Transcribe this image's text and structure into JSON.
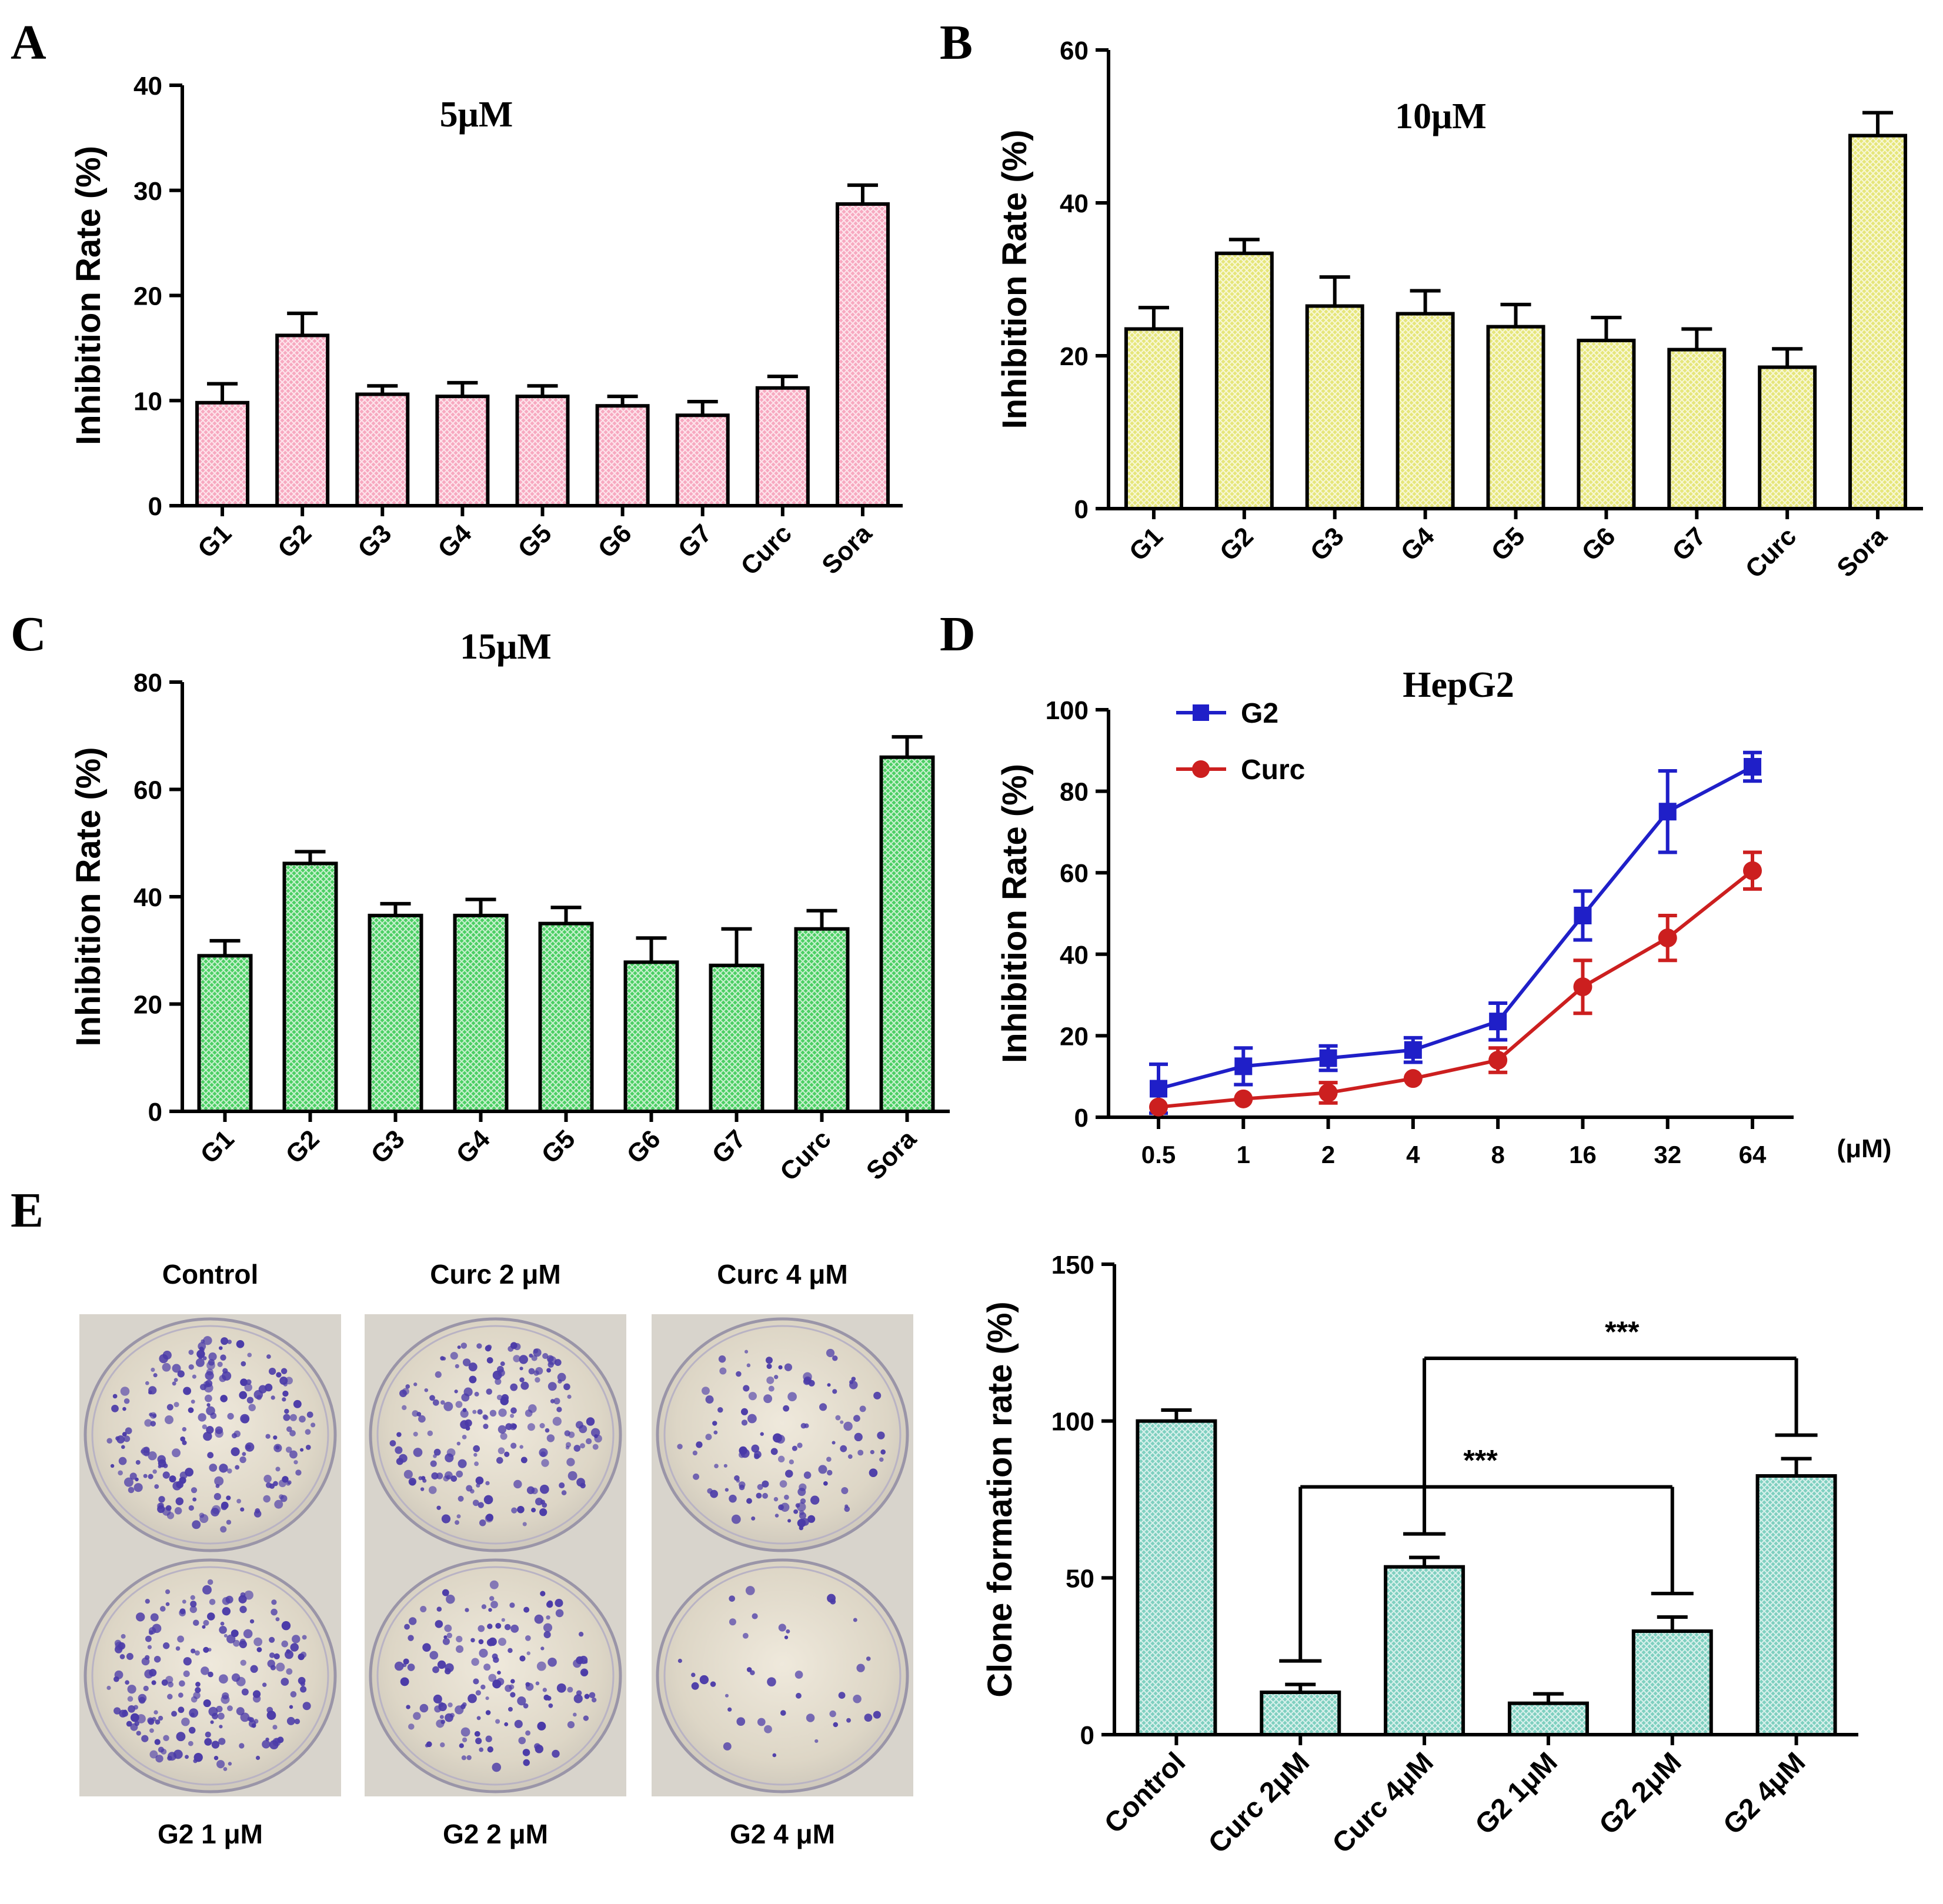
{
  "panels": [
    "A",
    "B",
    "C",
    "D",
    "E"
  ],
  "chart_data": [
    {
      "id": "A",
      "type": "bar",
      "title": "5μM",
      "ylabel": "Inhibition Rate (%)",
      "xlabel": "",
      "categories": [
        "G1",
        "G2",
        "G3",
        "G4",
        "G5",
        "G6",
        "G7",
        "Curc",
        "Sora"
      ],
      "values": [
        9.8,
        16.2,
        10.6,
        10.4,
        10.4,
        9.5,
        8.6,
        11.2,
        28.7
      ],
      "errors": [
        1.8,
        2.1,
        0.8,
        1.3,
        1.0,
        0.9,
        1.3,
        1.1,
        1.8
      ],
      "yticks": [
        0,
        10,
        20,
        30,
        40
      ],
      "ylim": [
        0,
        40
      ],
      "color": "#f7a9c0"
    },
    {
      "id": "B",
      "type": "bar",
      "title": "10μM",
      "ylabel": "Inhibition Rate (%)",
      "xlabel": "",
      "categories": [
        "G1",
        "G2",
        "G3",
        "G4",
        "G5",
        "G6",
        "G7",
        "Curc",
        "Sora"
      ],
      "values": [
        23.5,
        33.4,
        26.5,
        25.5,
        23.8,
        22.0,
        20.8,
        18.5,
        48.8
      ],
      "errors": [
        2.8,
        1.8,
        3.8,
        3.0,
        2.9,
        3.0,
        2.7,
        2.4,
        3.0
      ],
      "yticks": [
        0,
        20,
        40,
        60
      ],
      "ylim": [
        0,
        60
      ],
      "color": "#e6e67a"
    },
    {
      "id": "C",
      "type": "bar",
      "title": "15μM",
      "ylabel": "Inhibition Rate (%)",
      "xlabel": "",
      "categories": [
        "G1",
        "G2",
        "G3",
        "G4",
        "G5",
        "G6",
        "G7",
        "Curc",
        "Sora"
      ],
      "values": [
        29.0,
        46.2,
        36.5,
        36.5,
        35.0,
        27.8,
        27.2,
        34.0,
        66.0
      ],
      "errors": [
        2.8,
        2.2,
        2.2,
        3.0,
        3.0,
        4.5,
        6.8,
        3.4,
        3.8
      ],
      "yticks": [
        0,
        20,
        40,
        60,
        80
      ],
      "ylim": [
        0,
        80
      ],
      "color": "#4ccf64"
    },
    {
      "id": "D",
      "type": "line",
      "title": "HepG2",
      "ylabel": "Inhibition Rate (%)",
      "xlabel": "(μM)",
      "categories": [
        "0.5",
        "1",
        "2",
        "4",
        "8",
        "16",
        "32",
        "64"
      ],
      "series": [
        {
          "name": "G2",
          "color": "#1f1fc8",
          "marker": "square",
          "values": [
            7.0,
            12.5,
            14.5,
            16.5,
            23.5,
            49.5,
            75.0,
            86.0
          ],
          "errors": [
            6.0,
            4.5,
            3.0,
            3.0,
            4.5,
            6.0,
            10.0,
            3.5
          ]
        },
        {
          "name": "Curc",
          "color": "#cc1f1f",
          "marker": "circle",
          "values": [
            2.5,
            4.5,
            6.0,
            9.5,
            14.0,
            32.0,
            44.0,
            60.5
          ],
          "errors": [
            0.0,
            0.0,
            2.5,
            0.0,
            3.0,
            6.5,
            5.5,
            4.5
          ]
        }
      ],
      "yticks": [
        0,
        20,
        40,
        60,
        80,
        100
      ],
      "ylim": [
        0,
        100
      ],
      "legend": "top-left"
    },
    {
      "id": "E",
      "type": "bar",
      "title": "",
      "ylabel": "Clone formation rate (%)",
      "xlabel": "",
      "categories": [
        "Control",
        "Curc 2μM",
        "Curc 4μM",
        "G2 1μM",
        "G2 2μM",
        "G2 4μM"
      ],
      "values": [
        100.0,
        13.5,
        53.5,
        10.0,
        33.0,
        82.5
      ],
      "errors": [
        3.5,
        2.5,
        3.0,
        3.0,
        4.5,
        5.5
      ],
      "yticks": [
        0,
        50,
        100,
        150
      ],
      "ylim": [
        0,
        150
      ],
      "color": "#7fd0c0",
      "significance": [
        {
          "from": "Curc 2μM",
          "to": "G2 2μM",
          "label": "***"
        },
        {
          "from": "Curc 4μM",
          "to": "G2 4μM",
          "label": "***"
        }
      ]
    }
  ],
  "plates": {
    "top_labels": [
      "Control",
      "Curc 2 μM",
      "Curc 4 μM"
    ],
    "bottom_labels": [
      "G2 1 μM",
      "G2 2 μM",
      "G2 4 μM"
    ],
    "colony_counts": [
      210,
      190,
      120,
      200,
      150,
      40
    ],
    "colony_color": "#4a3aa8"
  }
}
